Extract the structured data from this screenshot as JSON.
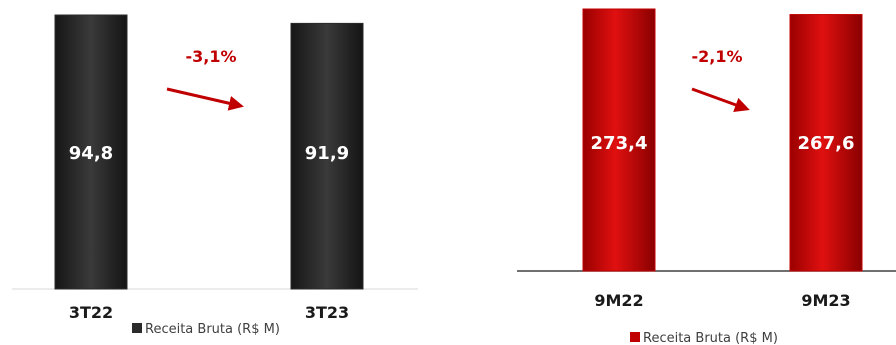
{
  "chart_data": [
    {
      "type": "bar",
      "categories": [
        "3T22",
        "3T23"
      ],
      "series": [
        {
          "name": "Receita Bruta (R$ M)",
          "values": [
            94.8,
            91.9
          ]
        }
      ],
      "value_labels": [
        "94,8",
        "91,9"
      ],
      "variation_label": "-3,1%",
      "color": "#2b2b2b",
      "variation_color": "#c00000",
      "legend_position": "bottom",
      "title": "",
      "xlabel": "",
      "ylabel": "",
      "grid": false
    },
    {
      "type": "bar",
      "categories": [
        "9M22",
        "9M23"
      ],
      "series": [
        {
          "name": "Receita Bruta (R$ M)",
          "values": [
            273.4,
            267.6
          ]
        }
      ],
      "value_labels": [
        "273,4",
        "267,6"
      ],
      "variation_label": "-2,1%",
      "color": "#c00000",
      "variation_color": "#c00000",
      "legend_position": "bottom",
      "title": "",
      "xlabel": "",
      "ylabel": "",
      "grid": false
    }
  ]
}
